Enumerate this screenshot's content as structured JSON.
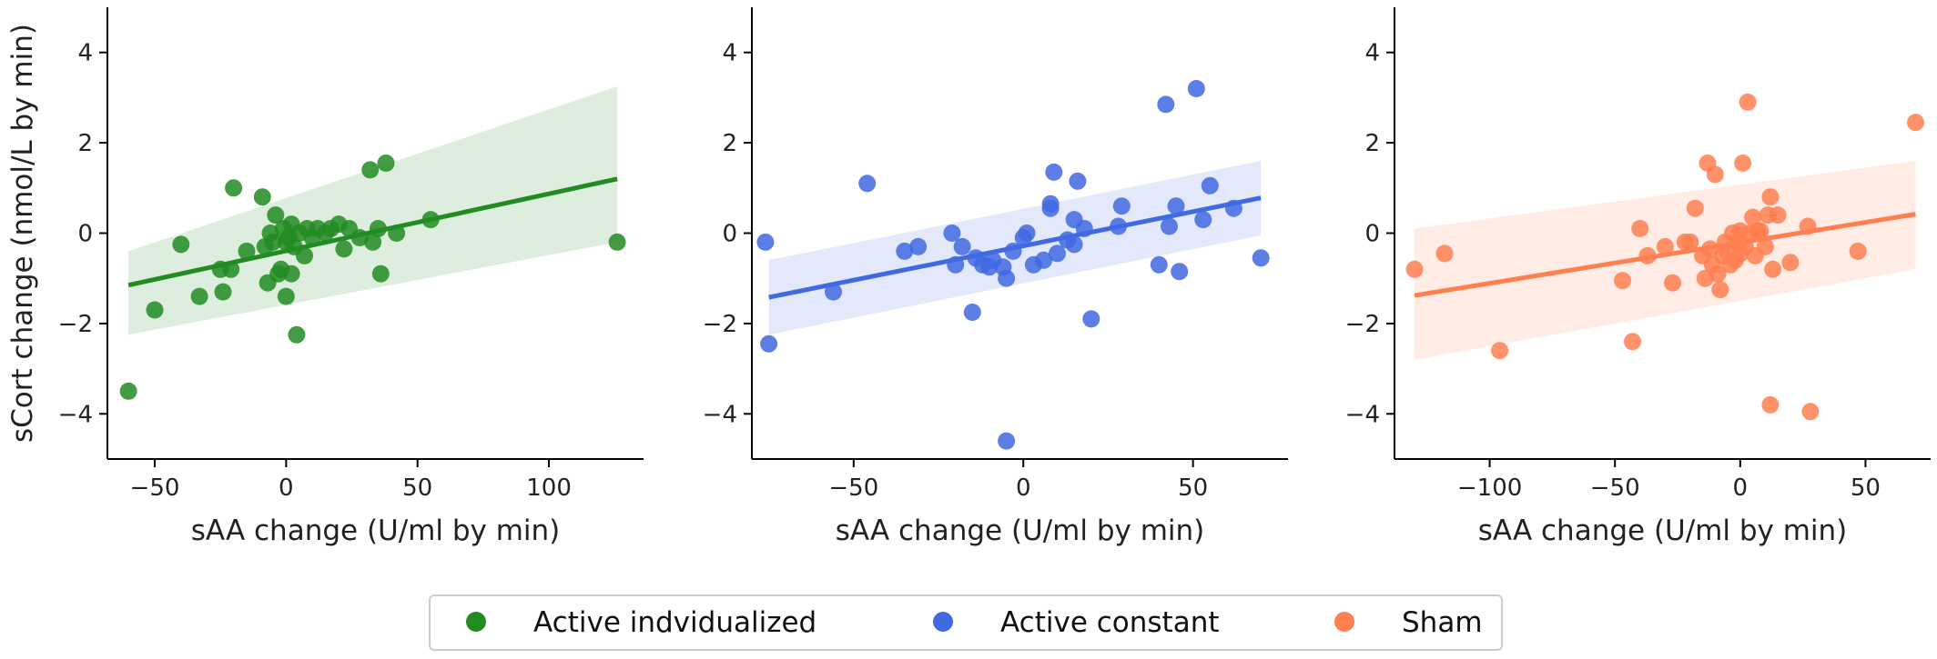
{
  "chart_data": [
    {
      "type": "scatter",
      "panel": "left",
      "series_name": "Active indvidualized",
      "color": "#228B22",
      "xlabel": "sAA change (U/ml by min)",
      "ylabel": "sCort change (nmol/L by min)",
      "xlim": [
        -68,
        136
      ],
      "ylim": [
        -5,
        5
      ],
      "xticks": [
        -50,
        0,
        50,
        100
      ],
      "yticks": [
        -4,
        -2,
        0,
        2,
        4
      ],
      "points": [
        [
          -60,
          -3.5
        ],
        [
          -50,
          -1.7
        ],
        [
          -40,
          -0.25
        ],
        [
          -33,
          -1.4
        ],
        [
          -25,
          -0.8
        ],
        [
          -24,
          -1.3
        ],
        [
          -21,
          -0.8
        ],
        [
          -20,
          1.0
        ],
        [
          -15,
          -0.4
        ],
        [
          -9,
          0.8
        ],
        [
          -8,
          -0.3
        ],
        [
          -7,
          -1.1
        ],
        [
          -6,
          0.0
        ],
        [
          -5,
          -0.2
        ],
        [
          -4,
          0.4
        ],
        [
          -3,
          -0.9
        ],
        [
          -2,
          -0.8
        ],
        [
          -1,
          0.1
        ],
        [
          0,
          -0.2
        ],
        [
          0,
          -1.4
        ],
        [
          1,
          -0.1
        ],
        [
          2,
          0.2
        ],
        [
          2,
          -0.9
        ],
        [
          3,
          -0.3
        ],
        [
          4,
          -2.25
        ],
        [
          5,
          0.0
        ],
        [
          7,
          -0.5
        ],
        [
          8,
          0.1
        ],
        [
          10,
          -0.1
        ],
        [
          12,
          0.1
        ],
        [
          15,
          0.0
        ],
        [
          17,
          0.1
        ],
        [
          20,
          0.2
        ],
        [
          22,
          -0.35
        ],
        [
          24,
          0.1
        ],
        [
          28,
          -0.1
        ],
        [
          32,
          1.4
        ],
        [
          33,
          -0.2
        ],
        [
          35,
          0.1
        ],
        [
          36,
          -0.9
        ],
        [
          38,
          1.55
        ],
        [
          42,
          0.0
        ],
        [
          55,
          0.3
        ],
        [
          126,
          -0.2
        ]
      ],
      "regression": {
        "x": [
          -60,
          126
        ],
        "y": [
          -1.15,
          1.2
        ]
      },
      "ci_band": {
        "x": [
          -60,
          126
        ],
        "upper": [
          -0.4,
          3.25
        ],
        "lower": [
          -2.25,
          -0.2
        ]
      }
    },
    {
      "type": "scatter",
      "panel": "middle",
      "series_name": "Active constant",
      "color": "#4169E1",
      "xlabel": "sAA change (U/ml by min)",
      "ylabel": "",
      "xlim": [
        -80,
        78
      ],
      "ylim": [
        -5,
        5
      ],
      "xticks": [
        -50,
        0,
        50
      ],
      "yticks": [
        -4,
        -2,
        0,
        2,
        4
      ],
      "points": [
        [
          -76,
          -0.2
        ],
        [
          -75,
          -2.45
        ],
        [
          -56,
          -1.3
        ],
        [
          -46,
          1.1
        ],
        [
          -35,
          -0.4
        ],
        [
          -31,
          -0.3
        ],
        [
          -21,
          0.0
        ],
        [
          -20,
          -0.7
        ],
        [
          -18,
          -0.3
        ],
        [
          -15,
          -1.75
        ],
        [
          -14,
          -0.55
        ],
        [
          -12,
          -0.7
        ],
        [
          -10,
          -0.75
        ],
        [
          -9,
          -0.6
        ],
        [
          -6,
          -0.75
        ],
        [
          -5,
          -1.0
        ],
        [
          -5,
          -4.6
        ],
        [
          -3,
          -0.4
        ],
        [
          0,
          -0.1
        ],
        [
          1,
          0.0
        ],
        [
          3,
          -0.7
        ],
        [
          6,
          -0.6
        ],
        [
          8,
          0.55
        ],
        [
          8,
          0.65
        ],
        [
          9,
          1.35
        ],
        [
          10,
          -0.45
        ],
        [
          13,
          -0.15
        ],
        [
          15,
          0.3
        ],
        [
          15,
          -0.25
        ],
        [
          16,
          1.15
        ],
        [
          18,
          0.1
        ],
        [
          20,
          -1.9
        ],
        [
          28,
          0.15
        ],
        [
          29,
          0.6
        ],
        [
          40,
          -0.7
        ],
        [
          42,
          2.85
        ],
        [
          43,
          0.15
        ],
        [
          45,
          0.6
        ],
        [
          46,
          -0.85
        ],
        [
          51,
          3.2
        ],
        [
          53,
          0.3
        ],
        [
          55,
          1.05
        ],
        [
          62,
          0.55
        ],
        [
          70,
          -0.55
        ]
      ],
      "regression": {
        "x": [
          -75,
          70
        ],
        "y": [
          -1.42,
          0.78
        ]
      },
      "ci_band": {
        "x": [
          -75,
          70
        ],
        "upper": [
          -0.6,
          1.6
        ],
        "lower": [
          -2.25,
          -0.05
        ]
      }
    },
    {
      "type": "scatter",
      "panel": "right",
      "series_name": "Sham",
      "color": "#FF7F50",
      "xlabel": "sAA change (U/ml by min)",
      "ylabel": "",
      "xlim": [
        -138,
        76
      ],
      "ylim": [
        -5,
        5
      ],
      "xticks": [
        -100,
        -50,
        0,
        50
      ],
      "yticks": [
        -4,
        -2,
        0,
        2,
        4
      ],
      "points": [
        [
          -130,
          -0.8
        ],
        [
          -118,
          -0.45
        ],
        [
          -96,
          -2.6
        ],
        [
          -47,
          -1.05
        ],
        [
          -43,
          -2.4
        ],
        [
          -40,
          0.1
        ],
        [
          -37,
          -0.5
        ],
        [
          -30,
          -0.3
        ],
        [
          -27,
          -1.1
        ],
        [
          -22,
          -0.2
        ],
        [
          -20,
          -0.2
        ],
        [
          -18,
          0.55
        ],
        [
          -15,
          -0.5
        ],
        [
          -14,
          -1.0
        ],
        [
          -13,
          1.55
        ],
        [
          -12,
          -0.35
        ],
        [
          -11,
          -0.7
        ],
        [
          -10,
          1.3
        ],
        [
          -9,
          -0.9
        ],
        [
          -8,
          -1.25
        ],
        [
          -7,
          -0.5
        ],
        [
          -6,
          -0.2
        ],
        [
          -5,
          -0.4
        ],
        [
          -4,
          -0.7
        ],
        [
          -3,
          0.0
        ],
        [
          -2,
          -0.6
        ],
        [
          -1,
          -0.2
        ],
        [
          0,
          0.05
        ],
        [
          0,
          -0.45
        ],
        [
          1,
          1.55
        ],
        [
          2,
          -0.3
        ],
        [
          3,
          2.9
        ],
        [
          4,
          0.0
        ],
        [
          5,
          0.35
        ],
        [
          6,
          -0.5
        ],
        [
          7,
          0.05
        ],
        [
          8,
          0.05
        ],
        [
          10,
          -0.3
        ],
        [
          11,
          0.4
        ],
        [
          12,
          0.8
        ],
        [
          12,
          -3.8
        ],
        [
          13,
          -0.8
        ],
        [
          15,
          0.4
        ],
        [
          20,
          -0.65
        ],
        [
          27,
          0.15
        ],
        [
          28,
          -3.95
        ],
        [
          47,
          -0.4
        ],
        [
          70,
          2.45
        ]
      ],
      "regression": {
        "x": [
          -130,
          70
        ],
        "y": [
          -1.38,
          0.42
        ]
      },
      "ci_band": {
        "x": [
          -130,
          70
        ],
        "upper": [
          0.1,
          1.6
        ],
        "lower": [
          -2.8,
          -0.8
        ]
      }
    }
  ],
  "legend": {
    "items": [
      {
        "label": "Active indvidualized",
        "color": "#228B22"
      },
      {
        "label": "Active constant",
        "color": "#4169E1"
      },
      {
        "label": "Sham",
        "color": "#FF7F50"
      }
    ]
  }
}
